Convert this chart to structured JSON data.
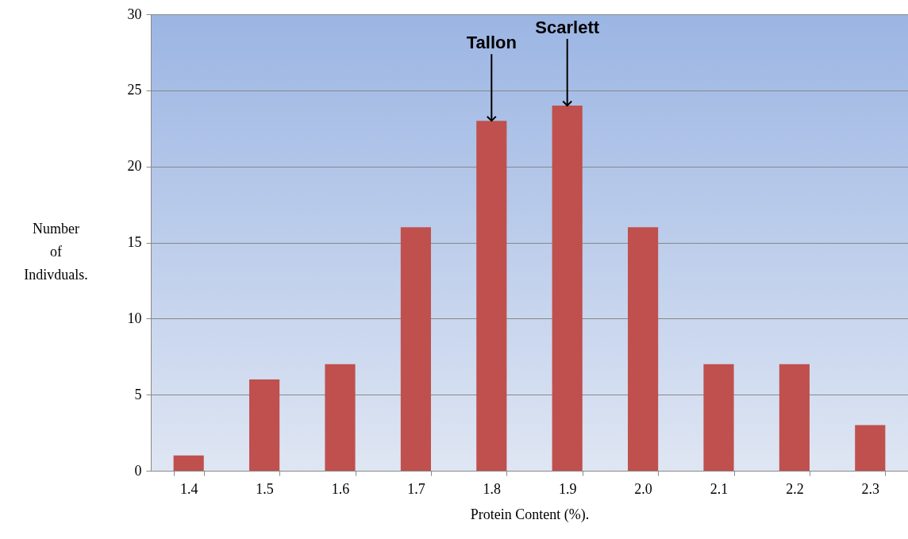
{
  "chart_data": {
    "type": "bar",
    "xlabel": "Protein Content (%).",
    "ylabel": "Number of Indivduals.",
    "categories": [
      "1.4",
      "1.5",
      "1.6",
      "1.7",
      "1.8",
      "1.9",
      "2.0",
      "2.1",
      "2.2",
      "2.3"
    ],
    "values": [
      1,
      6,
      7,
      16,
      23,
      24,
      16,
      7,
      7,
      3
    ],
    "color": "#c0504d",
    "ylim": [
      0,
      30
    ],
    "yticks": [
      0,
      5,
      10,
      15,
      20,
      25,
      30
    ],
    "grid": "y",
    "annotations": [
      {
        "text": "Tallon",
        "x": "1.8",
        "y": 23
      },
      {
        "text": "Scarlett",
        "x": "1.9",
        "y": 24
      }
    ]
  }
}
